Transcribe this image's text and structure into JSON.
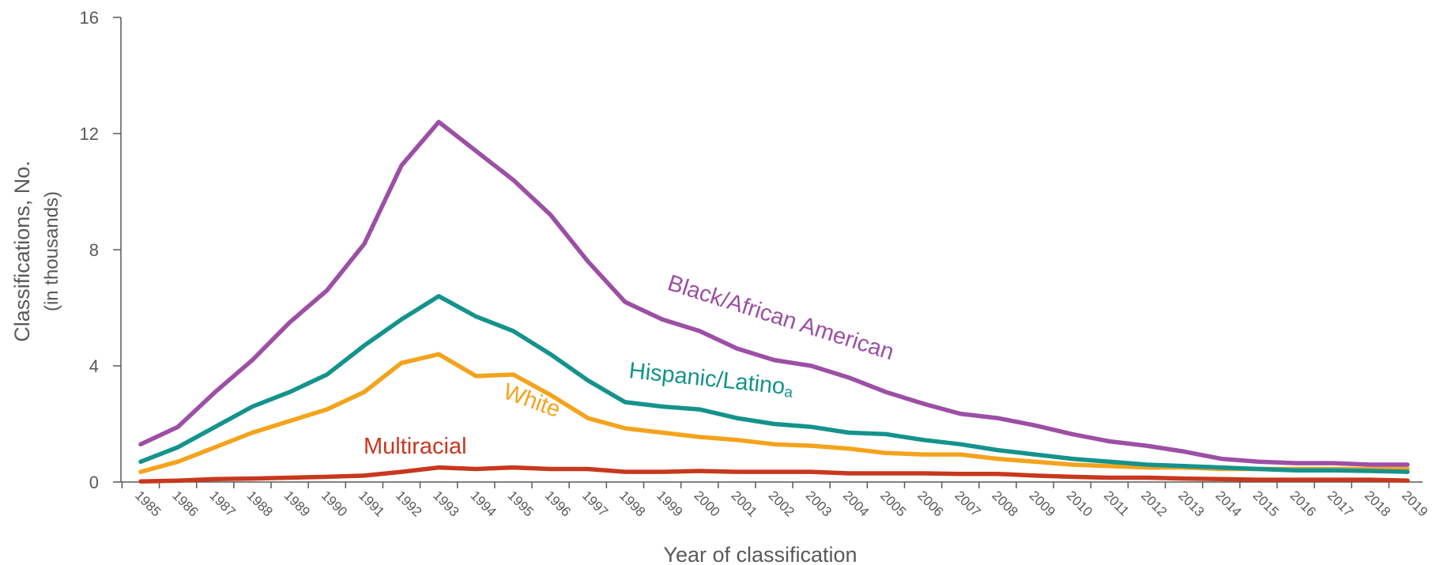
{
  "chart_data": {
    "type": "line",
    "title": "",
    "xlabel": "Year of classification",
    "ylabel": "Classifications, No.",
    "ylabel_sub": "(in thousands)",
    "ylim": [
      0,
      16
    ],
    "yticks": [
      "0",
      "4",
      "8",
      "12",
      "16"
    ],
    "ytick_values": [
      0,
      4,
      8,
      12,
      16
    ],
    "x": [
      "1985",
      "1986",
      "1987",
      "1988",
      "1989",
      "1990",
      "1991",
      "1992",
      "1993",
      "1994",
      "1995",
      "1996",
      "1997",
      "1998",
      "1999",
      "2000",
      "2001",
      "2002",
      "2003",
      "2004",
      "2005",
      "2006",
      "2007",
      "2008",
      "2009",
      "2010",
      "2011",
      "2012",
      "2013",
      "2014",
      "2015",
      "2016",
      "2017",
      "2018",
      "2019"
    ],
    "grid": false,
    "legend": "inline labels",
    "series": [
      {
        "name": "Black/African American",
        "label_text": "Black/African American",
        "label_sup": "",
        "color": "#9C4FA5",
        "values": [
          1.3,
          1.9,
          3.1,
          4.2,
          5.5,
          6.6,
          8.2,
          10.9,
          12.4,
          11.4,
          10.4,
          9.2,
          7.6,
          6.2,
          5.6,
          5.2,
          4.6,
          4.2,
          4.0,
          3.6,
          3.1,
          2.7,
          2.35,
          2.2,
          1.95,
          1.65,
          1.4,
          1.25,
          1.05,
          0.8,
          0.7,
          0.65,
          0.65,
          0.6,
          0.6
        ]
      },
      {
        "name": "Hispanic/Latino",
        "label_text": "Hispanic/Latino",
        "label_sup": "a",
        "color": "#14938C",
        "values": [
          0.7,
          1.2,
          1.9,
          2.6,
          3.1,
          3.7,
          4.7,
          5.6,
          6.4,
          5.7,
          5.2,
          4.4,
          3.5,
          2.75,
          2.6,
          2.5,
          2.2,
          2.0,
          1.9,
          1.7,
          1.65,
          1.45,
          1.3,
          1.1,
          0.95,
          0.8,
          0.7,
          0.6,
          0.55,
          0.5,
          0.45,
          0.4,
          0.4,
          0.38,
          0.35
        ]
      },
      {
        "name": "White",
        "label_text": "White",
        "label_sup": "",
        "color": "#F4A31C",
        "values": [
          0.35,
          0.7,
          1.2,
          1.7,
          2.1,
          2.5,
          3.1,
          4.1,
          4.4,
          3.65,
          3.7,
          3.0,
          2.2,
          1.85,
          1.7,
          1.55,
          1.45,
          1.3,
          1.25,
          1.15,
          1.0,
          0.95,
          0.95,
          0.8,
          0.7,
          0.6,
          0.55,
          0.5,
          0.5,
          0.45,
          0.45,
          0.45,
          0.45,
          0.45,
          0.45
        ]
      },
      {
        "name": "Multiracial",
        "label_text": "Multiracial",
        "label_sup": "",
        "color": "#C8381E",
        "values": [
          0.02,
          0.05,
          0.1,
          0.12,
          0.15,
          0.18,
          0.22,
          0.35,
          0.5,
          0.45,
          0.5,
          0.45,
          0.45,
          0.35,
          0.35,
          0.38,
          0.35,
          0.35,
          0.35,
          0.3,
          0.3,
          0.3,
          0.28,
          0.28,
          0.22,
          0.18,
          0.15,
          0.15,
          0.12,
          0.1,
          0.08,
          0.08,
          0.08,
          0.08,
          0.05
        ]
      }
    ]
  }
}
